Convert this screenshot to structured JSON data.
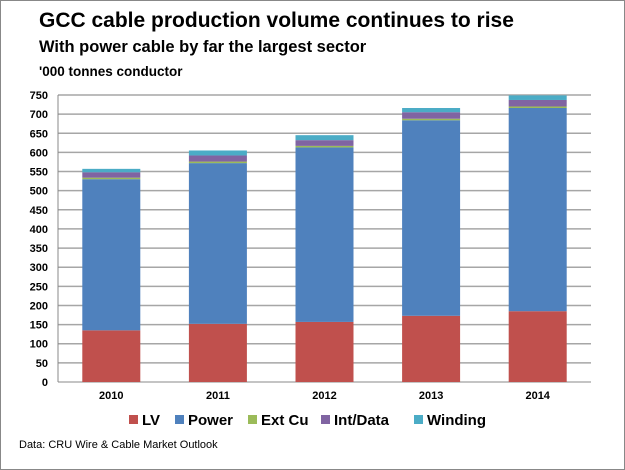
{
  "chart_data": {
    "type": "bar",
    "stacked": true,
    "title": "GCC cable production volume continues to rise",
    "subtitle": "With power cable by far the largest sector",
    "ylabel": "'000 tonnes conductor",
    "xlabel": "",
    "ylim": [
      0,
      750
    ],
    "ytick_step": 50,
    "grid": true,
    "legend_position": "bottom",
    "categories": [
      "2010",
      "2011",
      "2012",
      "2013",
      "2014"
    ],
    "series": [
      {
        "name": "LV",
        "color": "#C0504D",
        "values": [
          135,
          152,
          157,
          173,
          185
        ]
      },
      {
        "name": "Power",
        "color": "#4F81BD",
        "values": [
          395,
          420,
          456,
          511,
          531
        ]
      },
      {
        "name": "Ext Cu",
        "color": "#9BBB59",
        "values": [
          4,
          4,
          4,
          4,
          4
        ]
      },
      {
        "name": "Int/Data",
        "color": "#8064A2",
        "values": [
          14,
          16,
          15,
          17,
          17
        ]
      },
      {
        "name": "Winding",
        "color": "#4BACC6",
        "values": [
          9,
          13,
          13,
          11,
          12
        ]
      }
    ],
    "source": "Data: CRU Wire & Cable Market Outlook"
  }
}
